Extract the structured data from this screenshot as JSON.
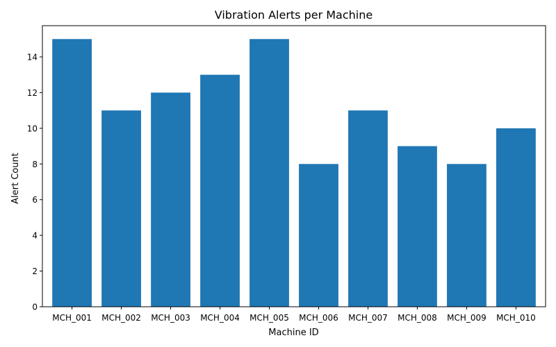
{
  "chart_data": {
    "type": "bar",
    "title": "Vibration Alerts per Machine",
    "xlabel": "Machine ID",
    "ylabel": "Alert Count",
    "categories": [
      "MCH_001",
      "MCH_002",
      "MCH_003",
      "MCH_004",
      "MCH_005",
      "MCH_006",
      "MCH_007",
      "MCH_008",
      "MCH_009",
      "MCH_010"
    ],
    "values": [
      15,
      11,
      12,
      13,
      15,
      8,
      11,
      9,
      8,
      10
    ],
    "ylim": [
      0,
      15.75
    ],
    "yticks": [
      0,
      2,
      4,
      6,
      8,
      10,
      12,
      14
    ],
    "grid": false,
    "bar_color": "#1f77b4"
  }
}
